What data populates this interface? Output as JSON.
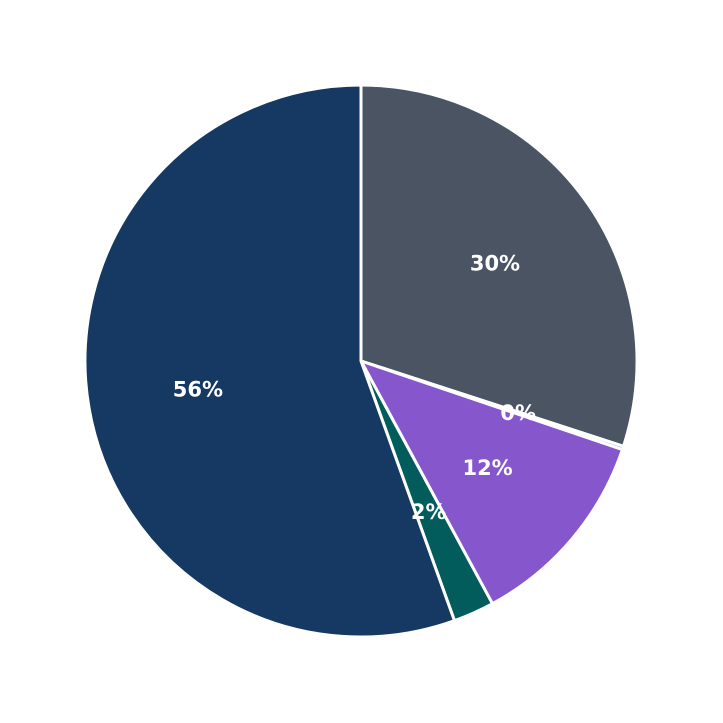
{
  "chart_data": {
    "type": "pie",
    "title": "",
    "start_angle": "top (12 o'clock), clockwise",
    "slices": [
      {
        "label": "30%",
        "value": 30.0,
        "color": "#4a5463"
      },
      {
        "label": "0%",
        "value": 0.2,
        "color": "#2e86de"
      },
      {
        "label": "12%",
        "value": 11.9,
        "color": "#8657cc"
      },
      {
        "label": "2%",
        "value": 2.4,
        "color": "#015c5b"
      },
      {
        "label": "56%",
        "value": 55.5,
        "color": "#153962"
      }
    ],
    "legend": null,
    "edge_color": "#ffffff"
  }
}
